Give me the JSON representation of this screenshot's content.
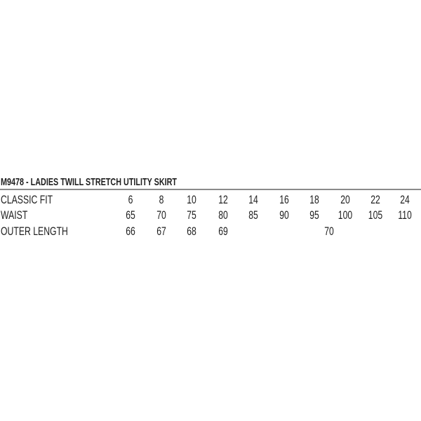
{
  "title": "M9478 - LADIES TWILL STRETCH UTILITY SKIRT",
  "table": {
    "header": {
      "label": "CLASSIC FIT",
      "cells": [
        "6",
        "8",
        "10",
        "12",
        "14",
        "16",
        "18",
        "20",
        "22",
        "24"
      ]
    },
    "rows": [
      {
        "label": "WAIST",
        "cells": [
          "65",
          "70",
          "75",
          "80",
          "85",
          "90",
          "95",
          "100",
          "105",
          "110"
        ]
      },
      {
        "label": "OUTER LENGTH",
        "cells": [
          "66",
          "67",
          "68",
          "69"
        ],
        "merged_value": "70",
        "merged_span": [
          "14",
          "24"
        ]
      }
    ]
  }
}
